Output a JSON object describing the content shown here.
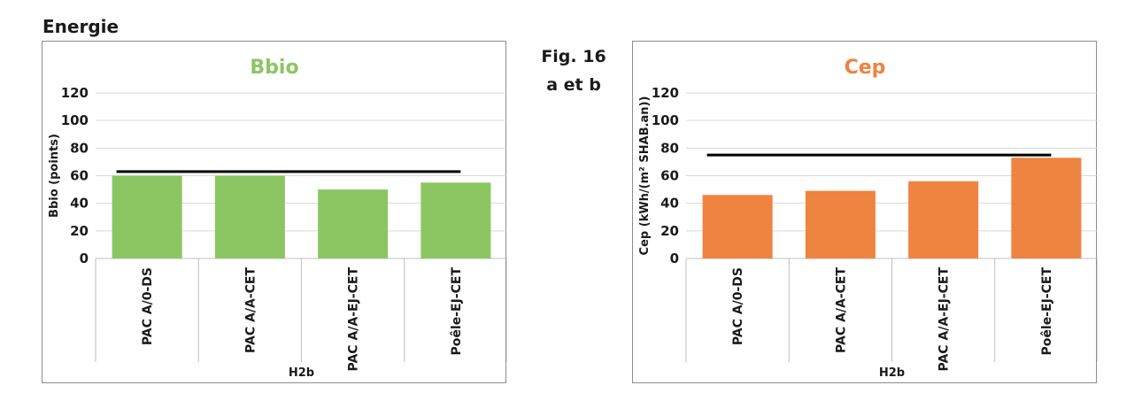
{
  "header": {
    "section_title": "Energie",
    "fig_caption_line1": "Fig. 16",
    "fig_caption_line2": "a et b"
  },
  "colors": {
    "bbio": "#8cc662",
    "cep": "#ef8340",
    "threshold": "#000000",
    "grid": "#d9d9d9",
    "axis": "#bfbfbf"
  },
  "chart_data": [
    {
      "type": "bar",
      "title": "Bbio",
      "ylabel": "Bbio (points)",
      "xlabel": "H2b",
      "categories": [
        "PAC A/0-DS",
        "PAC A/A-CET",
        "PAC A/A-EJ-CET",
        "Poêle-EJ-CET"
      ],
      "values": [
        60,
        60,
        50,
        55
      ],
      "threshold": 63,
      "ylim": [
        0,
        120
      ],
      "yticks": [
        "0",
        "20",
        "40",
        "60",
        "80",
        "100",
        "120"
      ],
      "grid": true,
      "legend": "none"
    },
    {
      "type": "bar",
      "title": "Cep",
      "ylabel": "Cep (kWh/(m² SHAB.an))",
      "xlabel": "H2b",
      "categories": [
        "PAC A/0-DS",
        "PAC A/A-CET",
        "PAC A/A-EJ-CET",
        "Poêle-EJ-CET"
      ],
      "values": [
        46,
        49,
        56,
        73
      ],
      "threshold": 75,
      "ylim": [
        0,
        120
      ],
      "yticks": [
        "0",
        "20",
        "40",
        "60",
        "80",
        "100",
        "120"
      ],
      "grid": true,
      "legend": "none"
    }
  ]
}
